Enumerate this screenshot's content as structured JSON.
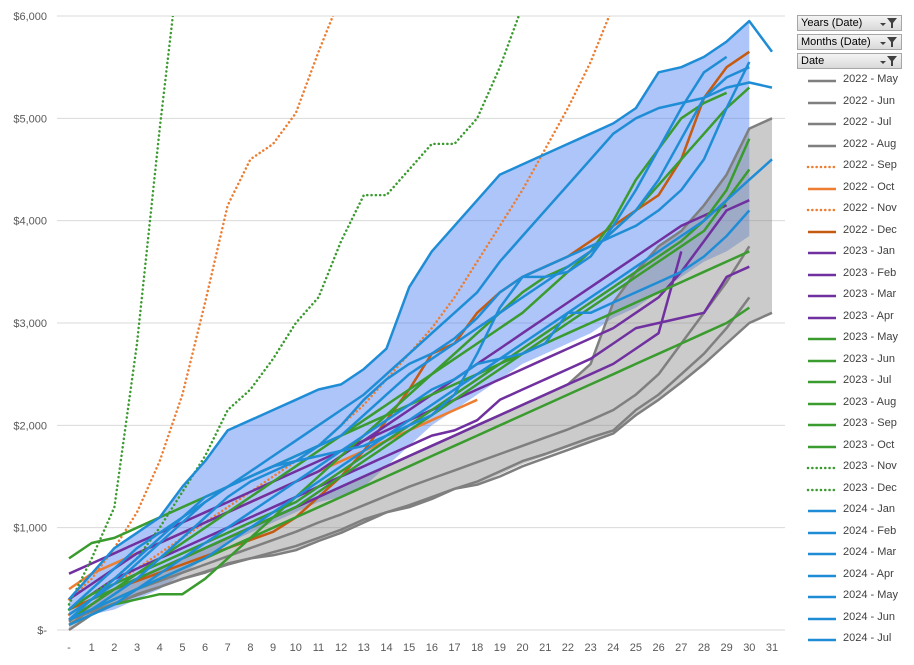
{
  "chart_data": {
    "type": "line",
    "x_ticks": [
      "-",
      "1",
      "2",
      "3",
      "4",
      "5",
      "6",
      "7",
      "8",
      "9",
      "10",
      "11",
      "12",
      "13",
      "14",
      "15",
      "16",
      "17",
      "18",
      "19",
      "20",
      "21",
      "22",
      "23",
      "24",
      "25",
      "26",
      "27",
      "28",
      "29",
      "30",
      "31"
    ],
    "y_ticks": [
      "$-",
      "$1,000",
      "$2,000",
      "$3,000",
      "$4,000",
      "$5,000",
      "$6,000"
    ],
    "ylim": [
      0,
      6000
    ],
    "xlim": [
      0,
      31
    ],
    "grid": "horizontal",
    "legend_position": "right",
    "bands": [
      {
        "color": "#4a7eef",
        "opacity": 0.45,
        "x": [
          0,
          1,
          2,
          3,
          4,
          5,
          6,
          7,
          8,
          9,
          10,
          11,
          12,
          13,
          14,
          15,
          16,
          17,
          18,
          19,
          20,
          21,
          22,
          23,
          24,
          25,
          26,
          27,
          28,
          29,
          30
        ],
        "upper": [
          300,
          550,
          800,
          950,
          1100,
          1400,
          1650,
          1950,
          2050,
          2150,
          2250,
          2350,
          2400,
          2550,
          2750,
          3350,
          3700,
          3950,
          4200,
          4450,
          4550,
          4650,
          4750,
          4850,
          4950,
          5100,
          5450,
          5500,
          5600,
          5750,
          5950
        ],
        "lower": [
          100,
          150,
          200,
          300,
          400,
          550,
          700,
          850,
          950,
          1050,
          1150,
          1250,
          1300,
          1400,
          1600,
          1800,
          2000,
          2150,
          2300,
          2450,
          2600,
          2700,
          2800,
          2900,
          3050,
          3150,
          3300,
          3450,
          3600,
          3700,
          3850
        ]
      },
      {
        "color": "#8c8c8c",
        "opacity": 0.45,
        "x": [
          0,
          1,
          2,
          3,
          4,
          5,
          6,
          7,
          8,
          9,
          10,
          11,
          12,
          13,
          14,
          15,
          16,
          17,
          18,
          19,
          20,
          21,
          22,
          23,
          24,
          25,
          26,
          27,
          28,
          29,
          30,
          31
        ],
        "upper": [
          100,
          250,
          400,
          500,
          600,
          700,
          800,
          900,
          1000,
          1100,
          1200,
          1300,
          1400,
          1500,
          1600,
          1700,
          1800,
          1900,
          2000,
          2100,
          2200,
          2300,
          2400,
          2600,
          3200,
          3500,
          3750,
          3900,
          4150,
          4450,
          4900,
          5000
        ],
        "lower": [
          0,
          150,
          250,
          350,
          420,
          500,
          560,
          650,
          700,
          730,
          780,
          870,
          950,
          1050,
          1150,
          1200,
          1280,
          1380,
          1420,
          1520,
          1620,
          1700,
          1780,
          1840,
          1920,
          2100,
          2250,
          2420,
          2600,
          2800,
          3000,
          3100
        ]
      }
    ],
    "series": [
      {
        "name": "2022 - May",
        "color": "#7f7f7f",
        "dash": "solid",
        "values": [
          100,
          180,
          260,
          340,
          420,
          500,
          570,
          640,
          700,
          760,
          820,
          900,
          980,
          1080,
          1150,
          1220,
          1300,
          1380,
          1420,
          1500,
          1600,
          1680,
          1760,
          1840,
          1920,
          2100,
          2250,
          2420,
          2600,
          2800,
          3000,
          3100
        ]
      },
      {
        "name": "2022 - Jun",
        "color": "#7f7f7f",
        "dash": "solid",
        "values": [
          0,
          150,
          250,
          350,
          420,
          500,
          560,
          650,
          700,
          730,
          780,
          870,
          950,
          1050,
          1150,
          1200,
          1280,
          1380,
          1450,
          1550,
          1650,
          1720,
          1800,
          1880,
          1950,
          2150,
          2300,
          2500,
          2700,
          2950,
          3250
        ]
      },
      {
        "name": "2022 - Jul",
        "color": "#7f7f7f",
        "dash": "solid",
        "values": [
          50,
          200,
          300,
          400,
          480,
          560,
          640,
          720,
          800,
          880,
          960,
          1050,
          1130,
          1220,
          1310,
          1400,
          1480,
          1560,
          1640,
          1720,
          1800,
          1880,
          1960,
          2050,
          2150,
          2300,
          2500,
          2800,
          3100,
          3400,
          3750
        ]
      },
      {
        "name": "2022 - Aug",
        "color": "#7f7f7f",
        "dash": "solid",
        "values": [
          80,
          250,
          400,
          500,
          600,
          700,
          800,
          900,
          1000,
          1100,
          1200,
          1300,
          1400,
          1500,
          1600,
          1700,
          1800,
          1900,
          2000,
          2100,
          2200,
          2300,
          2400,
          2600,
          3200,
          3500,
          3750,
          3900,
          4150,
          4450,
          4900,
          5000
        ]
      },
      {
        "name": "2022 - Sep",
        "color": "#ed7d31",
        "dash": "dotted",
        "values": [
          300,
          500,
          800,
          1150,
          1650,
          2300,
          3200,
          4150,
          4600,
          4750,
          5050,
          5650,
          6200
        ]
      },
      {
        "name": "2022 - Oct",
        "color": "#ed7d31",
        "dash": "solid",
        "values": [
          400,
          550,
          650,
          750,
          850,
          950,
          1050,
          1150,
          1250,
          1350,
          1450,
          1550,
          1650,
          1750,
          1850,
          1950,
          2050,
          2150,
          2250
        ]
      },
      {
        "name": "2022 - Nov",
        "color": "#ed7d31",
        "dash": "dotted",
        "values": [
          150,
          300,
          450,
          600,
          750,
          900,
          1050,
          1200,
          1350,
          1500,
          1650,
          1800,
          2000,
          2200,
          2450,
          2700,
          2950,
          3250,
          3600,
          3950,
          4300,
          4700,
          5100,
          5550,
          6100
        ]
      },
      {
        "name": "2022 - Dec",
        "color": "#c55a11",
        "dash": "solid",
        "values": [
          200,
          300,
          400,
          480,
          560,
          640,
          720,
          800,
          880,
          960,
          1100,
          1300,
          1500,
          1750,
          2050,
          2350,
          2700,
          2800,
          3100,
          3300,
          3450,
          3550,
          3650,
          3800,
          3950,
          4100,
          4250,
          4600,
          5200,
          5500,
          5650
        ]
      },
      {
        "name": "2023 - Jan",
        "color": "#7030a0",
        "dash": "solid",
        "values": [
          550,
          650,
          750,
          850,
          950,
          1050,
          1150,
          1250,
          1350,
          1450,
          1550,
          1650,
          1750,
          1850,
          1950,
          2050,
          2150,
          2250,
          2350,
          2450,
          2550,
          2650,
          2750,
          2850,
          2950,
          3100,
          3250,
          3500,
          3800,
          4100,
          4200
        ]
      },
      {
        "name": "2023 - Feb",
        "color": "#7030a0",
        "dash": "solid",
        "values": [
          200,
          350,
          500,
          600,
          700,
          800,
          900,
          1000,
          1100,
          1200,
          1300,
          1400,
          1500,
          1600,
          1700,
          1800,
          1900,
          1950,
          2050,
          2250,
          2350,
          2450,
          2550,
          2650,
          2800,
          2950,
          3000,
          3050,
          3100,
          3450,
          3550
        ]
      },
      {
        "name": "2023 - Mar",
        "color": "#7030a0",
        "dash": "solid",
        "values": [
          300,
          450,
          600,
          750,
          850,
          950,
          1050,
          1150,
          1250,
          1350,
          1450,
          1550,
          1700,
          1850,
          2000,
          2150,
          2300,
          2450,
          2600,
          2750,
          2900,
          3050,
          3200,
          3350,
          3500,
          3650,
          3800,
          3950,
          4050,
          4150
        ]
      },
      {
        "name": "2023 - Apr",
        "color": "#7030a0",
        "dash": "solid",
        "values": [
          100,
          250,
          400,
          500,
          600,
          700,
          800,
          900,
          1000,
          1100,
          1200,
          1300,
          1400,
          1500,
          1600,
          1700,
          1800,
          1900,
          2000,
          2100,
          2200,
          2300,
          2400,
          2500,
          2600,
          2750,
          2900,
          3700
        ]
      },
      {
        "name": "2023 - May",
        "color": "#3a9b2e",
        "dash": "solid",
        "values": [
          700,
          850,
          900,
          1000,
          1100,
          1200,
          1300,
          1400,
          1500,
          1600,
          1700,
          1800,
          1900,
          2000,
          2100,
          2200,
          2300,
          2400,
          2500,
          2600,
          2700,
          2800,
          2900,
          3000,
          3100,
          3200,
          3300,
          3400,
          3500,
          3600,
          3700
        ]
      },
      {
        "name": "2023 - Jun",
        "color": "#3a9b2e",
        "dash": "solid",
        "values": [
          150,
          300,
          400,
          500,
          600,
          700,
          800,
          900,
          1000,
          1100,
          1200,
          1350,
          1500,
          1650,
          1800,
          1950,
          2100,
          2250,
          2400,
          2550,
          2700,
          2850,
          3000,
          3150,
          3300,
          3450,
          3600,
          3750,
          3900,
          4200,
          4500
        ]
      },
      {
        "name": "2023 - Jul",
        "color": "#3a9b2e",
        "dash": "solid",
        "values": [
          200,
          350,
          450,
          550,
          650,
          750,
          850,
          950,
          1050,
          1150,
          1250,
          1400,
          1550,
          1700,
          1850,
          2000,
          2150,
          2300,
          2450,
          2600,
          2750,
          2900,
          3050,
          3200,
          3350,
          3500,
          3650,
          3800,
          4000,
          4300,
          4800
        ]
      },
      {
        "name": "2023 - Aug",
        "color": "#3a9b2e",
        "dash": "solid",
        "values": [
          100,
          200,
          300,
          400,
          500,
          600,
          700,
          800,
          900,
          1000,
          1100,
          1200,
          1300,
          1400,
          1500,
          1600,
          1700,
          1800,
          1900,
          2000,
          2100,
          2200,
          2300,
          2400,
          2500,
          2600,
          2700,
          2800,
          2900,
          3000,
          3150
        ]
      },
      {
        "name": "2023 - Sep",
        "color": "#3a9b2e",
        "dash": "solid",
        "values": [
          50,
          150,
          250,
          300,
          350,
          350,
          500,
          700,
          900,
          1100,
          1300,
          1500,
          1700,
          1900,
          2100,
          2300,
          2500,
          2700,
          2900,
          3100,
          3300,
          3450,
          3550,
          3700,
          4000,
          4400,
          4700,
          5000,
          5150,
          5250
        ]
      },
      {
        "name": "2023 - Oct",
        "color": "#3a9b2e",
        "dash": "solid",
        "values": [
          100,
          250,
          400,
          550,
          700,
          850,
          1000,
          1150,
          1300,
          1450,
          1600,
          1750,
          1900,
          2050,
          2200,
          2350,
          2500,
          2650,
          2800,
          2950,
          3100,
          3300,
          3500,
          3700,
          3900,
          4100,
          4350,
          4600,
          4850,
          5100,
          5300
        ]
      },
      {
        "name": "2023 - Nov",
        "color": "#3a9b2e",
        "dash": "dotted",
        "values": [
          200,
          350,
          500,
          700,
          1000,
          1350,
          1700,
          2150,
          2350,
          2650,
          3000,
          3250,
          3800,
          4250,
          4250,
          4500,
          4750,
          4750,
          5000,
          5500,
          6100
        ]
      },
      {
        "name": "2023 - Dec",
        "color": "#3a9b2e",
        "dash": "dotted",
        "values": [
          250,
          700,
          1200,
          2800,
          4900,
          6800
        ]
      },
      {
        "name": "2024 - Jan",
        "color": "#1f8dd6",
        "dash": "solid",
        "values": [
          300,
          550,
          800,
          950,
          1100,
          1400,
          1650,
          1950,
          2050,
          2150,
          2250,
          2350,
          2400,
          2550,
          2750,
          3350,
          3700,
          3950,
          4200,
          4450,
          4550,
          4650,
          4750,
          4850,
          4950,
          5100,
          5450,
          5500,
          5600,
          5750,
          5950,
          5650
        ]
      },
      {
        "name": "2024 - Feb",
        "color": "#1f8dd6",
        "dash": "solid",
        "values": [
          100,
          200,
          350,
          500,
          700,
          900,
          1100,
          1300,
          1450,
          1550,
          1650,
          1800,
          2000,
          2250,
          2450,
          2600,
          2700,
          2850,
          3050,
          3300,
          3450,
          3550,
          3650,
          3750,
          3850,
          3950,
          4100,
          4300,
          4600,
          5100,
          5550
        ]
      },
      {
        "name": "2024 - Mar",
        "color": "#1f8dd6",
        "dash": "solid",
        "values": [
          150,
          300,
          450,
          650,
          850,
          1050,
          1250,
          1400,
          1500,
          1600,
          1650,
          1700,
          1750,
          1800,
          1900,
          2000,
          2100,
          2300,
          2700,
          3150,
          3450,
          3450,
          3500,
          3650,
          3950,
          4300,
          4700,
          5100,
          5450,
          5600
        ]
      },
      {
        "name": "2024 - Apr",
        "color": "#1f8dd6",
        "dash": "solid",
        "values": [
          100,
          200,
          300,
          400,
          500,
          600,
          700,
          850,
          1000,
          1150,
          1300,
          1450,
          1600,
          1750,
          1900,
          2050,
          2200,
          2350,
          2500,
          2650,
          2800,
          2950,
          3100,
          3250,
          3400,
          3550,
          3700,
          3850,
          4000,
          4200,
          4400,
          4600
        ]
      },
      {
        "name": "2024 - May",
        "color": "#1f8dd6",
        "dash": "solid",
        "values": [
          50,
          150,
          250,
          400,
          550,
          700,
          850,
          1000,
          1150,
          1300,
          1450,
          1600,
          1750,
          1900,
          2050,
          2200,
          2350,
          2450,
          2600,
          2650,
          2700,
          2800,
          3100,
          3100,
          3200,
          3300,
          3400,
          3500,
          3650,
          3850,
          4100
        ]
      },
      {
        "name": "2024 - Jun",
        "color": "#1f8dd6",
        "dash": "solid",
        "values": [
          200,
          400,
          600,
          800,
          950,
          1100,
          1250,
          1400,
          1550,
          1700,
          1850,
          2000,
          2150,
          2300,
          2500,
          2700,
          2900,
          3100,
          3300,
          3600,
          3850,
          4100,
          4350,
          4600,
          4850,
          5000,
          5100,
          5150,
          5200,
          5300,
          5350,
          5300
        ]
      },
      {
        "name": "2024 - Jul",
        "color": "#1f8dd6",
        "dash": "solid",
        "values": [
          100,
          300,
          500,
          700,
          900,
          1100,
          1300,
          1400,
          1500,
          1600,
          1700,
          1800,
          1900,
          2100,
          2300,
          2500,
          2650,
          2800,
          2950,
          3100,
          3250,
          3400,
          3550,
          3700,
          3900,
          4100,
          4400,
          4800,
          5200,
          5400,
          5500
        ]
      }
    ]
  },
  "filters": [
    {
      "label": "Years (Date)"
    },
    {
      "label": "Months (Date)"
    },
    {
      "label": "Date"
    }
  ],
  "icons": {
    "filter": "filter-dropdown-icon"
  }
}
